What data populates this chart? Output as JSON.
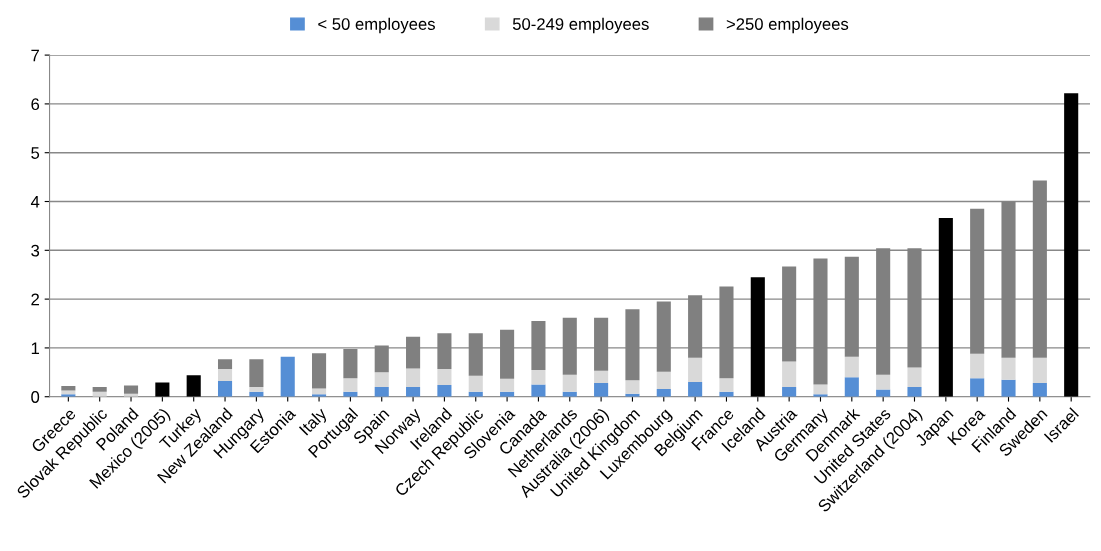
{
  "chart_data": {
    "type": "bar",
    "stacked": true,
    "categories": [
      "Greece",
      "Slovak Republic",
      "Poland",
      "Mexico (2005)",
      "Turkey",
      "New Zealand",
      "Hungary",
      "Estonia",
      "Italy",
      "Portugal",
      "Spain",
      "Norway",
      "Ireland",
      "Czech Republic",
      "Slovenia",
      "Canada",
      "Netherlands",
      "Australia (2006)",
      "United Kingdom",
      "Luxembourg",
      "Belgium",
      "France",
      "Iceland",
      "Austria",
      "Germany",
      "Denmark",
      "United States",
      "Switzerland (2004)",
      "Japan",
      "Korea",
      "Finland",
      "Sweden",
      "Israel"
    ],
    "series": [
      {
        "name": "< 50 employees",
        "color": "#558ed5",
        "values": [
          0.05,
          null,
          null,
          null,
          null,
          0.32,
          0.1,
          0.82,
          0.05,
          0.1,
          0.2,
          0.2,
          0.24,
          0.1,
          0.1,
          0.25,
          0.1,
          0.28,
          0.06,
          0.16,
          0.3,
          0.1,
          null,
          0.2,
          0.05,
          0.4,
          0.15,
          0.2,
          null,
          0.38,
          0.35,
          0.28,
          null
        ]
      },
      {
        "name": "50-249 employees",
        "color": "#d9d9d9",
        "values": [
          0.08,
          0.1,
          0.06,
          null,
          null,
          0.25,
          0.1,
          null,
          0.12,
          0.28,
          0.3,
          0.38,
          0.33,
          0.33,
          0.27,
          0.3,
          0.35,
          0.25,
          0.28,
          0.35,
          0.5,
          0.28,
          null,
          0.52,
          0.2,
          0.42,
          0.3,
          0.4,
          null,
          0.5,
          0.45,
          0.52,
          null
        ]
      },
      {
        "name": ">250 employees",
        "color": "#808080",
        "values": [
          0.09,
          0.1,
          0.17,
          null,
          null,
          0.2,
          0.57,
          null,
          0.72,
          0.6,
          0.55,
          0.65,
          0.73,
          0.87,
          1.0,
          1.0,
          1.17,
          1.09,
          1.45,
          1.44,
          1.28,
          1.88,
          null,
          1.95,
          2.58,
          2.05,
          2.59,
          2.44,
          null,
          2.97,
          3.2,
          3.63,
          null
        ]
      },
      {
        "color": "#000000",
        "values": [
          null,
          null,
          null,
          0.29,
          0.44,
          null,
          null,
          null,
          null,
          null,
          null,
          null,
          null,
          null,
          null,
          null,
          null,
          null,
          null,
          null,
          null,
          null,
          2.45,
          null,
          null,
          null,
          null,
          null,
          3.66,
          null,
          null,
          null,
          6.22
        ]
      }
    ],
    "ylim": [
      0,
      7
    ],
    "yticks": [
      0,
      1,
      2,
      3,
      4,
      5,
      6,
      7
    ],
    "grid": "y",
    "legend": "top"
  }
}
